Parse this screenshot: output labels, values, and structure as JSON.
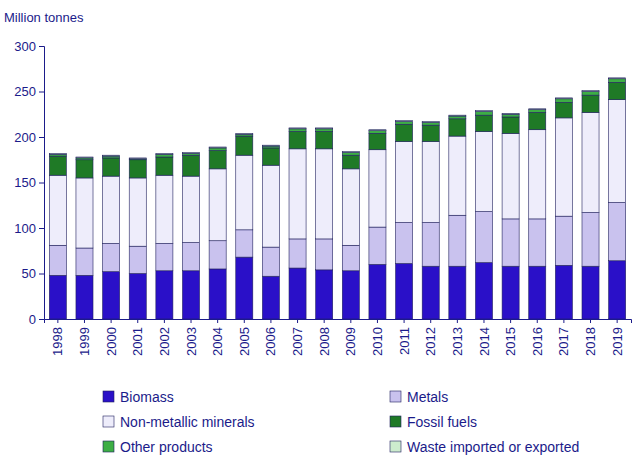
{
  "chart_data": {
    "type": "bar",
    "stacked": true,
    "legend": "bottom",
    "y_label": "Million tonnes",
    "categories": [
      "1998",
      "1999",
      "2000",
      "2001",
      "2002",
      "2003",
      "2004",
      "2005",
      "2006",
      "2007",
      "2008",
      "2009",
      "2010",
      "2011",
      "2012",
      "2013",
      "2014",
      "2015",
      "2016",
      "2017",
      "2018",
      "2019"
    ],
    "ylim": [
      0,
      300
    ],
    "yticks": [
      0,
      50,
      100,
      150,
      200,
      250,
      300
    ],
    "grid": false,
    "series": [
      {
        "name": "Biomass",
        "color": "#2a10c8",
        "values": [
          48,
          48,
          52,
          50,
          53,
          53,
          55,
          68,
          47,
          56,
          54,
          53,
          60,
          61,
          58,
          58,
          62,
          58,
          58,
          59,
          58,
          64
        ]
      },
      {
        "name": "Metals",
        "color": "#c9c2ee",
        "values": [
          33,
          30,
          31,
          30,
          30,
          31,
          31,
          30,
          32,
          32,
          34,
          28,
          41,
          45,
          48,
          56,
          56,
          52,
          52,
          54,
          59,
          64
        ]
      },
      {
        "name": "Non-metallic minerals",
        "color": "#eeedfb",
        "values": [
          77,
          77,
          74,
          75,
          75,
          73,
          79,
          82,
          90,
          99,
          99,
          84,
          85,
          89,
          89,
          87,
          88,
          94,
          98,
          108,
          110,
          113
        ]
      },
      {
        "name": "Fossil fuels",
        "color": "#1f7a26",
        "values": [
          21,
          20,
          20,
          20,
          20,
          23,
          20,
          21,
          19,
          19,
          19,
          15,
          18,
          19,
          18,
          19,
          18,
          18,
          19,
          17,
          19,
          19
        ]
      },
      {
        "name": "Other products",
        "color": "#3dae45",
        "values": [
          2,
          2,
          2,
          1,
          3,
          2,
          3,
          2,
          2,
          3,
          3,
          3,
          3,
          3,
          3,
          3,
          4,
          3,
          3,
          4,
          4,
          4
        ]
      },
      {
        "name": "Waste imported or exported",
        "color": "#cdeccd",
        "values": [
          1,
          1,
          1,
          1,
          1,
          1,
          1,
          1,
          1,
          1,
          1,
          1,
          1,
          1,
          1,
          1,
          1,
          1,
          1,
          1,
          1,
          1
        ]
      }
    ]
  }
}
